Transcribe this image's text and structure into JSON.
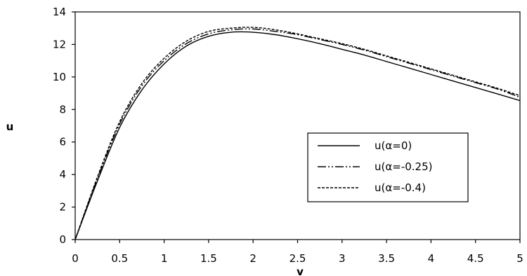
{
  "chart_data": {
    "type": "line",
    "title": "",
    "xlabel": "v",
    "ylabel": "u",
    "xlim": [
      0,
      5
    ],
    "ylim": [
      0,
      14
    ],
    "xticks": [
      0,
      0.5,
      1,
      1.5,
      2,
      2.5,
      3,
      3.5,
      4,
      4.5,
      5
    ],
    "yticks": [
      0,
      2,
      4,
      6,
      8,
      10,
      12,
      14
    ],
    "grid": false,
    "legend_position": "right",
    "x": [
      0,
      0.25,
      0.5,
      0.75,
      1,
      1.25,
      1.5,
      1.75,
      2,
      2.25,
      2.5,
      2.75,
      3,
      3.25,
      3.5,
      3.75,
      4,
      4.25,
      4.5,
      4.75,
      5
    ],
    "series": [
      {
        "name": "u(α=0)",
        "dash": "solid",
        "values": [
          0,
          3.6,
          6.9,
          9.2,
          10.8,
          11.9,
          12.5,
          12.75,
          12.75,
          12.6,
          12.35,
          12.05,
          11.7,
          11.35,
          10.95,
          10.55,
          10.15,
          9.75,
          9.35,
          8.95,
          8.55
        ]
      },
      {
        "name": "u(α=-0.25)",
        "dash": "dashdotdot",
        "values": [
          0,
          3.75,
          7.1,
          9.45,
          11.0,
          12.05,
          12.65,
          12.9,
          12.95,
          12.8,
          12.6,
          12.3,
          12.0,
          11.65,
          11.25,
          10.85,
          10.45,
          10.05,
          9.65,
          9.25,
          8.75
        ]
      },
      {
        "name": "u(α=-0.4)",
        "dash": "dashed",
        "values": [
          0,
          3.85,
          7.25,
          9.6,
          11.15,
          12.2,
          12.8,
          13.0,
          13.05,
          12.9,
          12.65,
          12.35,
          12.05,
          11.7,
          11.3,
          10.9,
          10.5,
          10.1,
          9.7,
          9.3,
          8.85
        ]
      }
    ]
  }
}
